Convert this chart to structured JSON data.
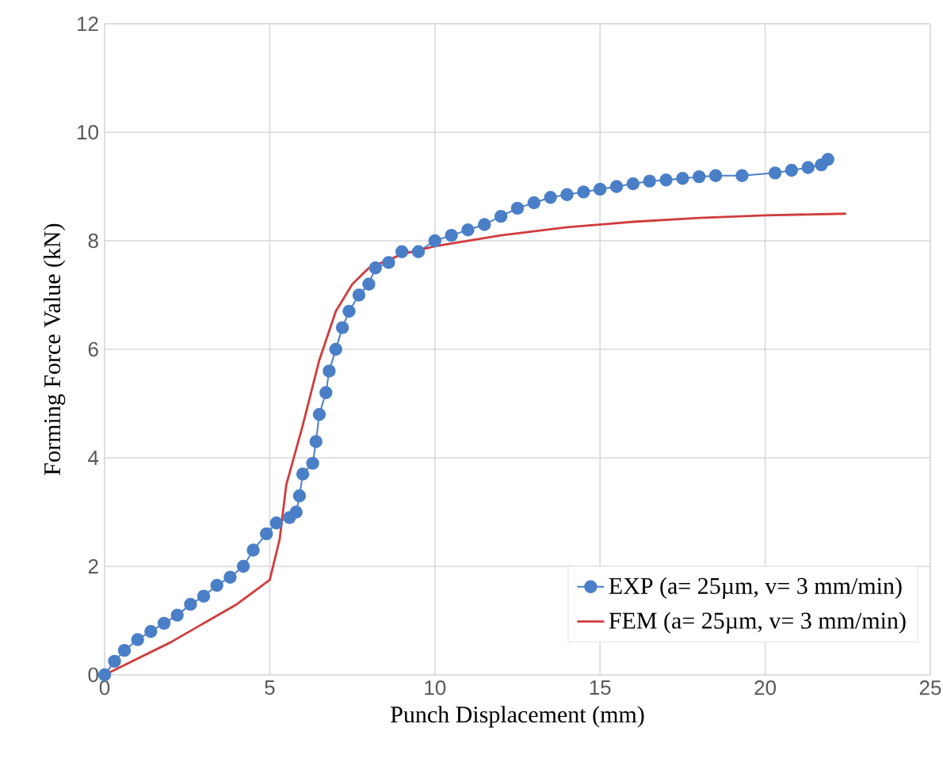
{
  "chart_data": {
    "type": "line",
    "xlabel": "Punch Displacement (mm)",
    "ylabel": "Forming Force Value (kN)",
    "xlim": [
      0,
      25
    ],
    "xticks": [
      0,
      5,
      10,
      15,
      20,
      25
    ],
    "ylim": [
      0,
      12
    ],
    "yticks": [
      0,
      2,
      4,
      6,
      8,
      10,
      12
    ],
    "grid": true,
    "legend": "bottom right",
    "series": [
      {
        "name": "EXP (a= 25µm, v= 3 mm/min)",
        "color": "#4a7fc8",
        "marker": "circle",
        "x": [
          0,
          0.3,
          0.6,
          1,
          1.4,
          1.8,
          2.2,
          2.6,
          3,
          3.4,
          3.8,
          4.2,
          4.5,
          4.9,
          5.2,
          5.6,
          5.8,
          5.9,
          6.0,
          6.3,
          6.4,
          6.5,
          6.7,
          6.8,
          7.0,
          7.2,
          7.4,
          7.7,
          8.0,
          8.2,
          8.6,
          9.0,
          9.5,
          10,
          10.5,
          11,
          11.5,
          12,
          12.5,
          13,
          13.5,
          14,
          14.5,
          15,
          15.5,
          16,
          16.5,
          17,
          17.5,
          18,
          18.5,
          19.3,
          20.3,
          20.8,
          21.3,
          21.7,
          21.9
        ],
        "values": [
          0,
          0.25,
          0.45,
          0.65,
          0.8,
          0.95,
          1.1,
          1.3,
          1.45,
          1.65,
          1.8,
          2.0,
          2.3,
          2.6,
          2.8,
          2.9,
          3.0,
          3.3,
          3.7,
          3.9,
          4.3,
          4.8,
          5.2,
          5.6,
          6.0,
          6.4,
          6.7,
          7.0,
          7.2,
          7.5,
          7.6,
          7.8,
          7.8,
          8.0,
          8.1,
          8.2,
          8.3,
          8.45,
          8.6,
          8.7,
          8.8,
          8.85,
          8.9,
          8.95,
          9.0,
          9.05,
          9.1,
          9.12,
          9.15,
          9.18,
          9.2,
          9.2,
          9.25,
          9.3,
          9.35,
          9.4,
          9.5
        ]
      },
      {
        "name": "FEM (a= 25µm, v= 3 mm/min)",
        "color": "#d03c3c",
        "marker": "none",
        "x": [
          0,
          2,
          4,
          5,
          5.3,
          5.5,
          6,
          6.5,
          7,
          7.5,
          8,
          9,
          10,
          12,
          14,
          16,
          18,
          20,
          22.45
        ],
        "values": [
          0,
          0.6,
          1.3,
          1.75,
          2.5,
          3.5,
          4.6,
          5.8,
          6.7,
          7.2,
          7.5,
          7.75,
          7.9,
          8.1,
          8.25,
          8.35,
          8.42,
          8.47,
          8.5
        ]
      }
    ]
  }
}
